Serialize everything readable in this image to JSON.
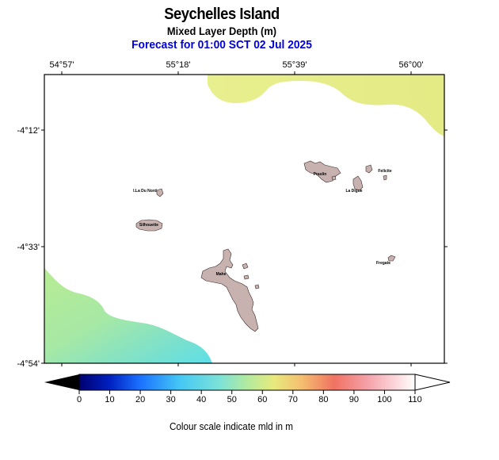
{
  "title": "Seychelles Island",
  "subtitle": "Mixed Layer Depth (m)",
  "forecast": "Forecast for  01:00 SCT 02 Jul 2025",
  "lon_ticks": [
    "54°57'",
    "55°18'",
    "55°39'",
    "56°00'"
  ],
  "lat_ticks": [
    "-4°12'",
    "-4°33'",
    "-4°54'"
  ],
  "islands": [
    {
      "name": "Praslin"
    },
    {
      "name": "Felicite"
    },
    {
      "name": "La Digue"
    },
    {
      "name": "I.La Du Nord"
    },
    {
      "name": "Silhouette"
    },
    {
      "name": "Mahe"
    },
    {
      "name": "Fregate"
    }
  ],
  "colorbar": {
    "ticks": [
      "0",
      "10",
      "20",
      "30",
      "40",
      "50",
      "60",
      "70",
      "80",
      "90",
      "100",
      "110"
    ],
    "min": 0,
    "max": 110,
    "colors": [
      "#000066",
      "#0030cc",
      "#2a8bff",
      "#4fd0f0",
      "#86e4c8",
      "#c8ec8a",
      "#f2e070",
      "#f4b060",
      "#f07060",
      "#f4a0a8",
      "#fadadd",
      "#ffffff"
    ]
  },
  "land_color": "#c8b2b0",
  "caption": "Colour scale indicate mld in m"
}
